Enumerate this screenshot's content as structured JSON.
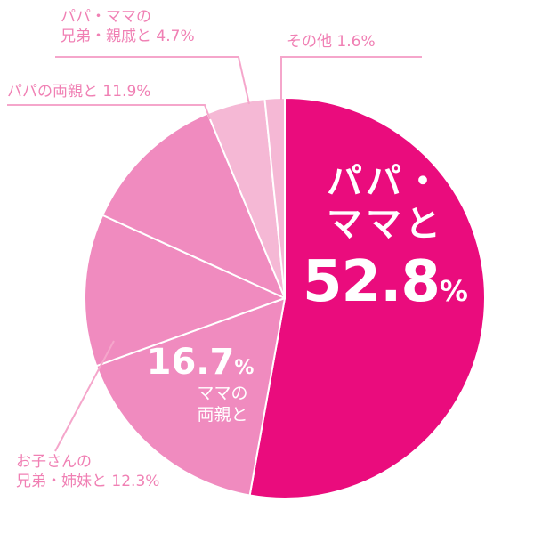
{
  "chart_data": {
    "type": "pie",
    "slices": [
      {
        "label_lines": [
          "パパ・",
          "ママと"
        ],
        "value": 52.8,
        "value_text": "52.8",
        "unit": "%",
        "color": "#ea0c7d"
      },
      {
        "label_lines": [
          "ママの",
          "両親と"
        ],
        "value": 16.7,
        "value_text": "16.7",
        "unit": "%",
        "color": "#f08bbf"
      },
      {
        "label_lines": [
          "お子さんの",
          "兄弟・姉妹と 12.3%"
        ],
        "value": 12.3,
        "color": "#f08bbf"
      },
      {
        "label_lines": [
          "パパの両親と 11.9%"
        ],
        "value": 11.9,
        "color": "#f08bbf"
      },
      {
        "label_lines": [
          "パパ・ママの",
          "兄弟・親戚と 4.7%"
        ],
        "value": 4.7,
        "color": "#f5b8d5"
      },
      {
        "label_lines": [
          "その他  1.6%"
        ],
        "value": 1.6,
        "color": "#f5b8d5"
      }
    ],
    "colors": {
      "callout_text": "#f080b4",
      "leader_line": "#f5a6cb",
      "inner_text": "#ffffff",
      "divider": "#ffffff"
    }
  }
}
